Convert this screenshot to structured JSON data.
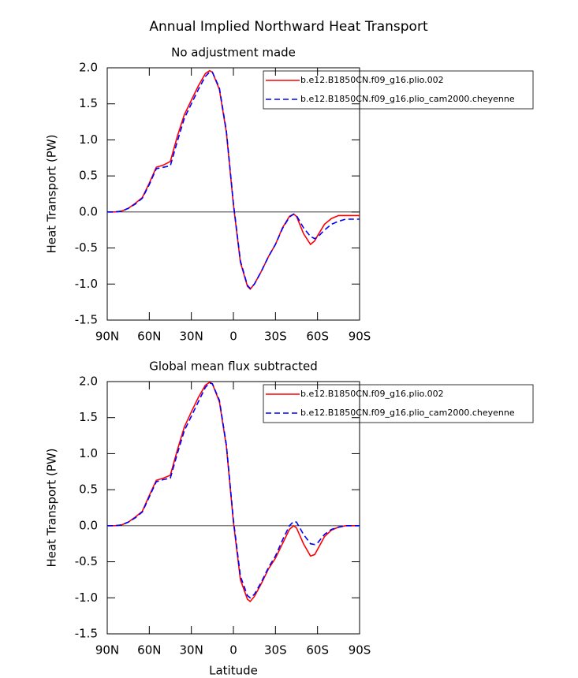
{
  "title": "Annual Implied Northward Heat Transport",
  "chart_data": [
    {
      "type": "line",
      "title": "No adjustment made",
      "ylabel": "Heat Transport (PW)",
      "x": [
        90,
        85,
        80,
        75,
        70,
        65,
        60,
        55,
        50,
        45,
        40,
        35,
        30,
        25,
        20,
        17,
        15,
        10,
        5,
        0,
        -5,
        -10,
        -12,
        -15,
        -20,
        -25,
        -30,
        -35,
        -40,
        -43,
        -45,
        -50,
        -55,
        -58,
        -60,
        -65,
        -70,
        -75,
        -80,
        -85,
        -90
      ],
      "series": [
        {
          "name": "b.e12.B1850CN.f09_g16.plio.002",
          "color": "#ff0000",
          "style": "solid",
          "values": [
            0,
            0,
            0.01,
            0.05,
            0.12,
            0.2,
            0.4,
            0.62,
            0.65,
            0.7,
            1.05,
            1.35,
            1.55,
            1.75,
            1.92,
            1.96,
            1.94,
            1.7,
            1.1,
            0.1,
            -0.7,
            -1.03,
            -1.07,
            -1.0,
            -0.82,
            -0.62,
            -0.45,
            -0.22,
            -0.06,
            -0.03,
            -0.06,
            -0.3,
            -0.45,
            -0.4,
            -0.33,
            -0.17,
            -0.09,
            -0.05,
            -0.05,
            -0.05,
            -0.05
          ]
        },
        {
          "name": "b.e12.B1850CN.f09_g16.plio_cam2000.cheyenne",
          "color": "#0000ff",
          "style": "dashed",
          "values": [
            0,
            0,
            0.01,
            0.05,
            0.11,
            0.19,
            0.38,
            0.6,
            0.62,
            0.64,
            0.98,
            1.3,
            1.5,
            1.7,
            1.88,
            1.94,
            1.94,
            1.72,
            1.12,
            0.12,
            -0.68,
            -1.02,
            -1.06,
            -1.0,
            -0.82,
            -0.62,
            -0.45,
            -0.23,
            -0.07,
            -0.03,
            -0.05,
            -0.22,
            -0.34,
            -0.37,
            -0.35,
            -0.25,
            -0.17,
            -0.13,
            -0.1,
            -0.1,
            -0.1
          ]
        }
      ],
      "xlim": [
        90,
        -90
      ],
      "xticks": [
        {
          "value": 90,
          "label": "90N"
        },
        {
          "value": 60,
          "label": "60N"
        },
        {
          "value": 30,
          "label": "30N"
        },
        0,
        {
          "value": -30,
          "label": "30S"
        },
        {
          "value": -60,
          "label": "60S"
        },
        {
          "value": -90,
          "label": "90S"
        }
      ],
      "ylim": [
        -1.5,
        2
      ],
      "yticks": [
        -1.5,
        {
          "value": -1,
          "label": "-1.0"
        },
        -0.5,
        {
          "value": 0,
          "label": "0.0"
        },
        0.5,
        {
          "value": 1,
          "label": "1.0"
        },
        1.5,
        {
          "value": 2,
          "label": "2.0"
        }
      ],
      "zero_line": true,
      "legend": "upper right"
    },
    {
      "type": "line",
      "title": "Global mean flux subtracted",
      "ylabel": "Heat Transport (PW)",
      "xlabel": "Latitude",
      "x": [
        90,
        85,
        80,
        75,
        70,
        65,
        60,
        55,
        50,
        45,
        40,
        35,
        30,
        25,
        20,
        17,
        15,
        10,
        5,
        0,
        -5,
        -10,
        -12,
        -15,
        -20,
        -25,
        -30,
        -35,
        -40,
        -43,
        -45,
        -50,
        -55,
        -58,
        -60,
        -65,
        -70,
        -75,
        -80,
        -85,
        -90
      ],
      "series": [
        {
          "name": "b.e12.B1850CN.f09_g16.plio.002",
          "color": "#ff0000",
          "style": "solid",
          "values": [
            0,
            0,
            0.01,
            0.05,
            0.12,
            0.2,
            0.42,
            0.63,
            0.66,
            0.7,
            1.05,
            1.37,
            1.58,
            1.78,
            1.95,
            1.99,
            1.97,
            1.72,
            1.1,
            0.05,
            -0.75,
            -1.02,
            -1.05,
            -0.98,
            -0.8,
            -0.6,
            -0.45,
            -0.25,
            -0.05,
            0.0,
            -0.03,
            -0.25,
            -0.42,
            -0.4,
            -0.33,
            -0.15,
            -0.06,
            -0.02,
            0,
            0,
            0
          ]
        },
        {
          "name": "b.e12.B1850CN.f09_g16.plio_cam2000.cheyenne",
          "color": "#0000ff",
          "style": "dashed",
          "values": [
            0,
            0,
            0.01,
            0.05,
            0.11,
            0.19,
            0.4,
            0.61,
            0.64,
            0.66,
            1.0,
            1.32,
            1.52,
            1.72,
            1.92,
            1.98,
            1.97,
            1.74,
            1.12,
            0.08,
            -0.7,
            -0.97,
            -1.0,
            -0.95,
            -0.78,
            -0.58,
            -0.42,
            -0.2,
            0.0,
            0.06,
            0.05,
            -0.12,
            -0.25,
            -0.26,
            -0.24,
            -0.12,
            -0.05,
            -0.02,
            0,
            0,
            0
          ]
        }
      ],
      "xlim": [
        90,
        -90
      ],
      "xticks": [
        {
          "value": 90,
          "label": "90N"
        },
        {
          "value": 60,
          "label": "60N"
        },
        {
          "value": 30,
          "label": "30N"
        },
        0,
        {
          "value": -30,
          "label": "30S"
        },
        {
          "value": -60,
          "label": "60S"
        },
        {
          "value": -90,
          "label": "90S"
        }
      ],
      "ylim": [
        -1.5,
        2
      ],
      "yticks": [
        -1.5,
        {
          "value": -1,
          "label": "-1.0"
        },
        -0.5,
        {
          "value": 0,
          "label": "0.0"
        },
        0.5,
        {
          "value": 1,
          "label": "1.0"
        },
        1.5,
        {
          "value": 2,
          "label": "2.0"
        }
      ],
      "zero_line": true,
      "legend": "upper right"
    }
  ]
}
